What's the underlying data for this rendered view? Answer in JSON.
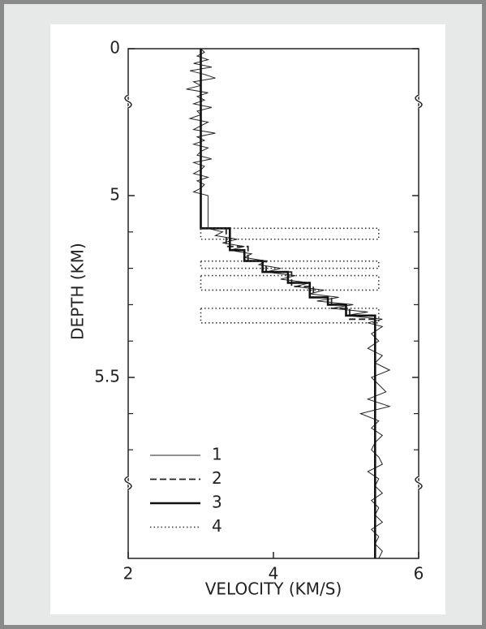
{
  "chart_data": {
    "type": "line",
    "xlabel": "VELOCITY (KM/S)",
    "ylabel": "DEPTH (KM)",
    "xlim": [
      2,
      6
    ],
    "xticks": [
      2,
      4,
      6
    ],
    "ylim": [
      0,
      6
    ],
    "yticks": [
      0,
      5,
      5.5
    ],
    "yminor_ticks": [
      5.1,
      5.2,
      5.3,
      5.4,
      5.6,
      5.7
    ],
    "y_inverted": true,
    "series": [
      {
        "name": "1",
        "style": "thin",
        "x": [
          3.0,
          3.05,
          2.95,
          3.1,
          2.9,
          3.15,
          2.85,
          3.05,
          3.2,
          2.9,
          3.0,
          2.8,
          3.1,
          2.95,
          3.05,
          2.9,
          3.15,
          2.95,
          3.0,
          2.85,
          3.1,
          3.0,
          2.9,
          3.2,
          2.95,
          3.05,
          2.9,
          3.1,
          3.0,
          2.95,
          3.15,
          2.9,
          3.05,
          3.0,
          2.9,
          3.1,
          2.95,
          3.05,
          3.0,
          2.9,
          3.1,
          3.1,
          3.3,
          3.2,
          3.5,
          3.3,
          3.6,
          3.4,
          3.7,
          3.6,
          3.9,
          3.8,
          4.1,
          3.9,
          4.3,
          4.1,
          4.5,
          4.3,
          4.7,
          4.5,
          4.9,
          4.6,
          5.1,
          4.8,
          5.3,
          5.0,
          5.5,
          5.3,
          5.5,
          5.35,
          5.45,
          5.3,
          5.5,
          5.4,
          5.6,
          5.35,
          5.45,
          5.55,
          5.3,
          5.6,
          5.2,
          5.45,
          5.35,
          5.5,
          5.4,
          5.35,
          5.45,
          5.5,
          5.3,
          5.45,
          5.4,
          5.5,
          5.35,
          5.45,
          5.4,
          5.5,
          5.35,
          5.45,
          5.4,
          5.5,
          5.45
        ],
        "y": [
          0,
          0.125,
          0.25,
          0.375,
          0.5,
          0.625,
          0.75,
          0.875,
          1.0,
          1.125,
          1.25,
          1.375,
          1.5,
          1.625,
          1.75,
          1.875,
          2.0,
          2.125,
          2.25,
          2.375,
          2.5,
          2.625,
          2.75,
          2.875,
          3.0,
          3.125,
          3.25,
          3.375,
          3.5,
          3.625,
          3.75,
          3.875,
          4.0,
          4.125,
          4.25,
          4.375,
          4.5,
          4.625,
          4.75,
          4.875,
          5.0,
          5.09,
          5.1,
          5.11,
          5.12,
          5.13,
          5.14,
          5.15,
          5.16,
          5.17,
          5.18,
          5.19,
          5.2,
          5.21,
          5.22,
          5.23,
          5.24,
          5.25,
          5.26,
          5.27,
          5.28,
          5.29,
          5.3,
          5.31,
          5.32,
          5.33,
          5.34,
          5.35,
          5.36,
          5.38,
          5.4,
          5.42,
          5.44,
          5.46,
          5.48,
          5.5,
          5.52,
          5.54,
          5.56,
          5.58,
          5.6,
          5.62,
          5.64,
          5.66,
          5.68,
          5.7,
          5.72,
          5.74,
          5.76,
          5.78,
          5.8,
          5.82,
          5.84,
          5.86,
          5.88,
          5.9,
          5.92,
          5.94,
          5.96,
          5.98,
          6.0
        ]
      },
      {
        "name": "2",
        "style": "dashed",
        "x": [
          3.0,
          3.0,
          3.35,
          3.35,
          3.65,
          3.65,
          3.9,
          3.9,
          4.25,
          4.25,
          4.55,
          4.55,
          4.8,
          4.8,
          5.05,
          5.05,
          5.4,
          5.4
        ],
        "y": [
          0,
          5.09,
          5.09,
          5.14,
          5.14,
          5.18,
          5.18,
          5.21,
          5.21,
          5.25,
          5.25,
          5.28,
          5.28,
          5.31,
          5.31,
          5.34,
          5.34,
          6.0
        ]
      },
      {
        "name": "3",
        "style": "thick",
        "x": [
          3.0,
          3.0,
          3.4,
          3.4,
          3.6,
          3.6,
          3.85,
          3.85,
          4.2,
          4.2,
          4.5,
          4.5,
          4.75,
          4.75,
          5.0,
          5.0,
          5.4,
          5.4
        ],
        "y": [
          0,
          5.09,
          5.09,
          5.15,
          5.15,
          5.18,
          5.18,
          5.21,
          5.21,
          5.24,
          5.24,
          5.28,
          5.28,
          5.3,
          5.3,
          5.33,
          5.33,
          6.0
        ]
      },
      {
        "name": "4",
        "style": "dotted",
        "bands": [
          {
            "x": [
              3.0,
              5.45
            ],
            "y": [
              5.09,
              5.12
            ]
          },
          {
            "x": [
              3.0,
              5.45
            ],
            "y": [
              5.18,
              5.2
            ]
          },
          {
            "x": [
              3.0,
              5.45
            ],
            "y": [
              5.22,
              5.26
            ]
          },
          {
            "x": [
              3.0,
              5.45
            ],
            "y": [
              5.31,
              5.35
            ]
          }
        ]
      }
    ]
  }
}
